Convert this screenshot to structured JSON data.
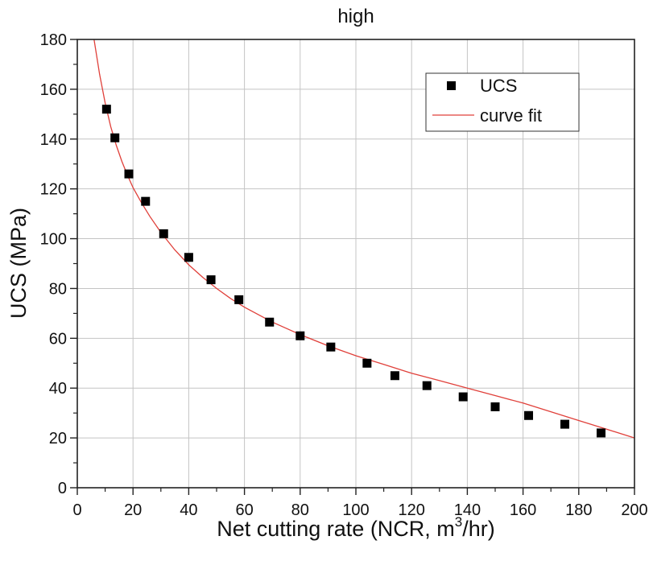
{
  "chart_data": {
    "type": "scatter",
    "title": "high",
    "xlabel_main": "Net cutting rate (NCR, m",
    "xlabel_sup": "3",
    "xlabel_tail": "/hr)",
    "ylabel": "UCS (MPa)",
    "xlim": [
      0,
      200
    ],
    "ylim": [
      0,
      180
    ],
    "x_ticks": [
      0,
      20,
      40,
      60,
      80,
      100,
      120,
      140,
      160,
      180,
      200
    ],
    "y_ticks": [
      0,
      20,
      40,
      60,
      80,
      100,
      120,
      140,
      160,
      180
    ],
    "x_tick_labels": [
      "0",
      "20",
      "40",
      "60",
      "80",
      "100",
      "120",
      "140",
      "160",
      "180",
      "200"
    ],
    "y_tick_labels": [
      "0",
      "20",
      "40",
      "60",
      "80",
      "100",
      "120",
      "140",
      "160",
      "180"
    ],
    "grid": true,
    "legend_position": "top-right",
    "series": [
      {
        "name": "UCS",
        "kind": "scatter",
        "marker": "square",
        "color": "#000000",
        "x": [
          10.5,
          13.5,
          18.5,
          24.5,
          31,
          40,
          48,
          58,
          69,
          80,
          91,
          104,
          114,
          125.5,
          138.5,
          150,
          162,
          175,
          188
        ],
        "y": [
          152,
          140.5,
          126,
          115,
          102,
          92.5,
          83.5,
          75.5,
          66.5,
          61,
          56.5,
          50,
          45,
          41,
          36.5,
          32.5,
          29,
          25.5,
          22
        ]
      },
      {
        "name": "curve fit",
        "kind": "line",
        "color": "#e0403a",
        "x": [
          6,
          8,
          10,
          12,
          14,
          16,
          18,
          20,
          23,
          26,
          30,
          35,
          40,
          45,
          50,
          55,
          60,
          70,
          80,
          90,
          100,
          110,
          120,
          130,
          140,
          150,
          160,
          170,
          180,
          190,
          200
        ],
        "y": [
          180,
          166,
          154.5,
          145,
          137.5,
          131,
          125.5,
          120.5,
          114.5,
          109,
          102.5,
          95.5,
          89.5,
          84.5,
          80,
          76,
          72.5,
          66.5,
          61.5,
          57,
          53,
          49.5,
          46,
          43,
          40,
          37,
          34,
          30.5,
          27,
          23.5,
          20
        ]
      }
    ]
  },
  "legend": {
    "scatter_label": "UCS",
    "line_label": "curve fit"
  }
}
